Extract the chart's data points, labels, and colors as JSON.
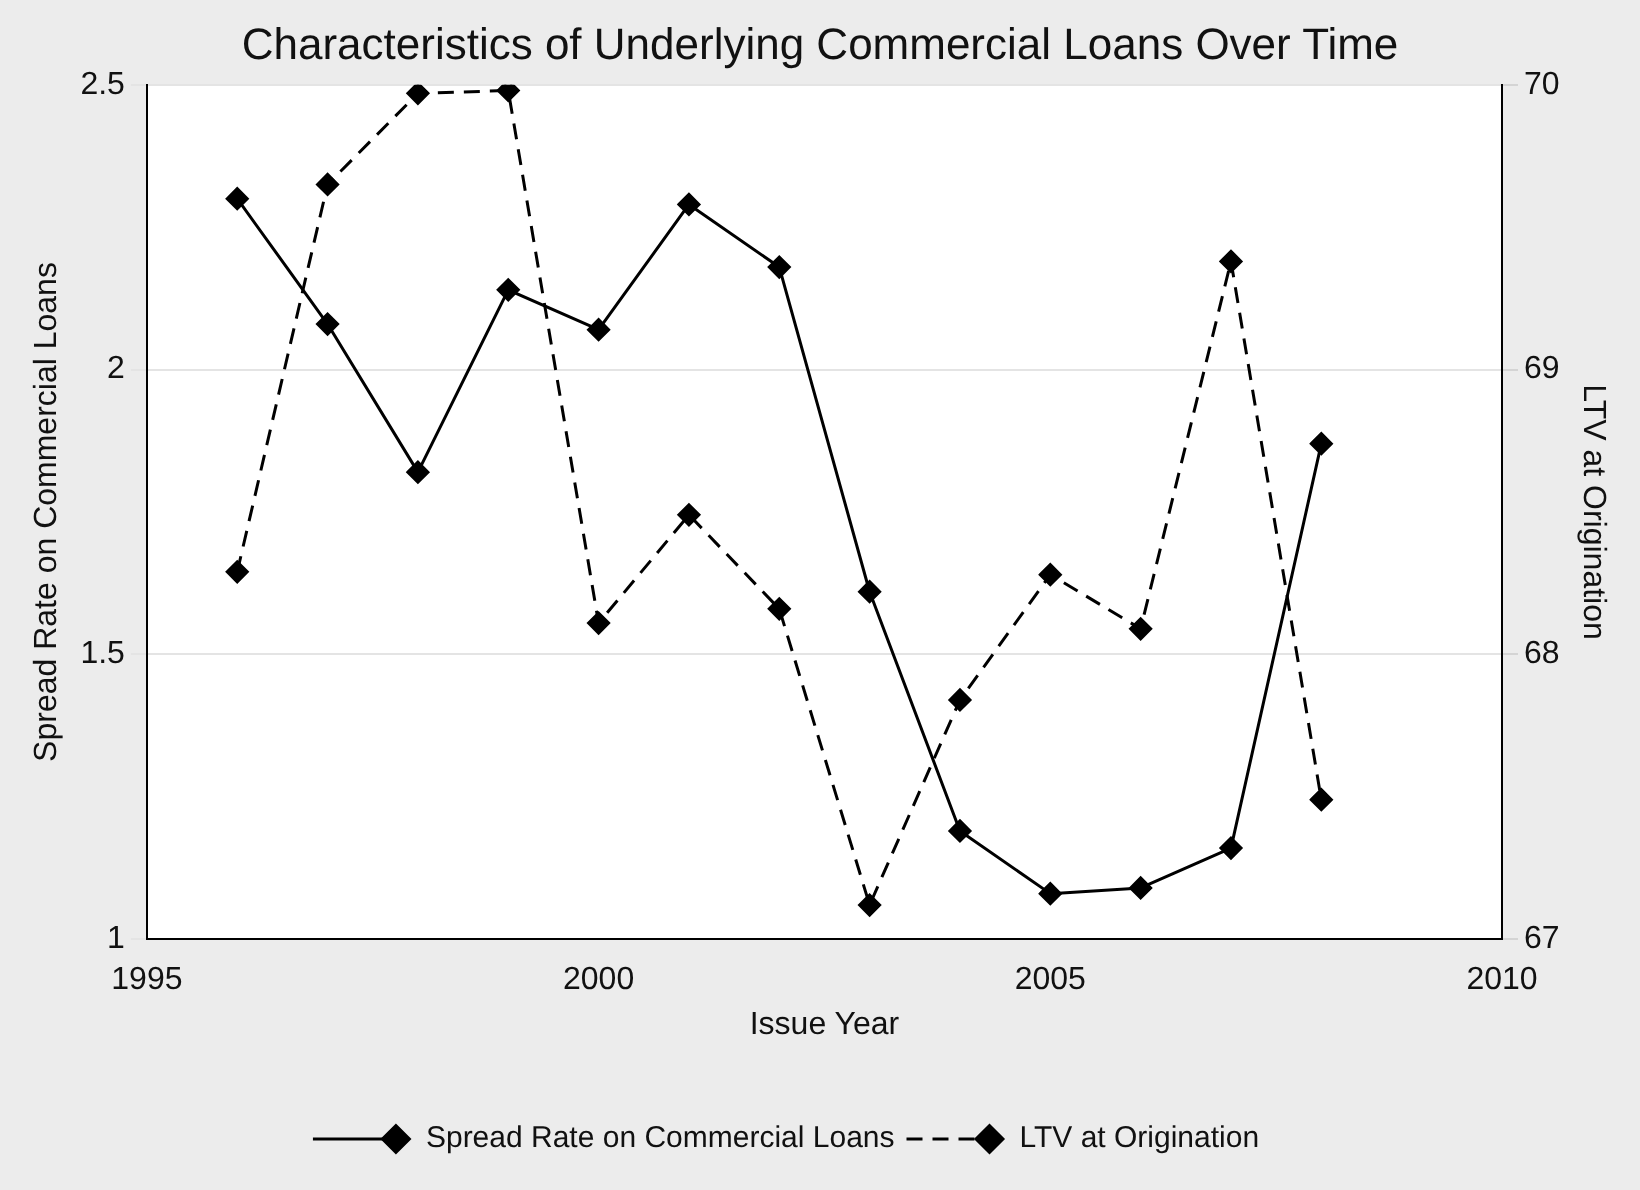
{
  "chart_data": {
    "type": "line",
    "title": "Characteristics of Underlying Commercial Loans Over Time",
    "xlabel": "Issue Year",
    "ylabel": "Spread Rate on Commercial Loans",
    "y2label": "LTV at Origination",
    "x": [
      1996,
      1997,
      1998,
      1999,
      2000,
      2001,
      2002,
      2003,
      2004,
      2005,
      2006,
      2007,
      2008
    ],
    "series": [
      {
        "name": "Spread Rate on Commercial Loans",
        "color": "#000000",
        "line_style": "solid",
        "values": [
          2.3,
          2.08,
          1.82,
          2.14,
          2.07,
          2.29,
          2.18,
          1.61,
          1.19,
          1.08,
          1.09,
          1.16,
          1.87
        ]
      },
      {
        "name": "LTV at Origination",
        "color": "#000000",
        "line_style": "dashed",
        "axis": "y2",
        "values": [
          68.29,
          69.65,
          69.97,
          69.98,
          68.11,
          68.49,
          68.16,
          67.12,
          67.84,
          68.28,
          68.09,
          69.38,
          67.49
        ]
      }
    ],
    "xlim": [
      1995,
      2010
    ],
    "xticks": [
      1995,
      2000,
      2005,
      2010
    ],
    "ylim": [
      1,
      2.5
    ],
    "yticks": [
      1,
      1.5,
      2,
      2.5
    ],
    "y2lim": [
      67,
      70
    ],
    "y2ticks": [
      67,
      68,
      69,
      70
    ],
    "grid": "y",
    "legend": "bottom",
    "marker": "diamond"
  }
}
